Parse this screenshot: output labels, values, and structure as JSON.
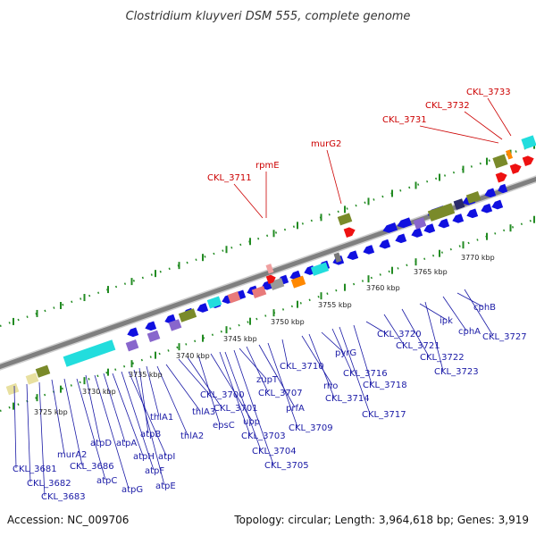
{
  "title": "Clostridium kluyveri DSM 555, complete genome",
  "footer": {
    "accession": "Accession: NC_009706",
    "stats": "Topology: circular; Length: 3,964,618 bp; Genes: 3,919"
  },
  "colors": {
    "cds": "#1010e0",
    "rrna_red": "#ee1111",
    "olive": "#7a8a2a",
    "cyan": "#22dddd",
    "purple": "#8866cc",
    "orange": "#ff8800",
    "pink": "#e87a7a",
    "gray": "#999999",
    "backbone": "#8a8a8a",
    "tick": "#228b22",
    "label_blue": "#1a1aa6",
    "label_red": "#cc0000"
  },
  "kbp_ticks": [
    {
      "text": "3725 kbp"
    },
    {
      "text": "3730 kbp"
    },
    {
      "text": "3735 kbp"
    },
    {
      "text": "3740 kbp"
    },
    {
      "text": "3745 kbp"
    },
    {
      "text": "3750 kbp"
    },
    {
      "text": "3755 kbp"
    },
    {
      "text": "3760 kbp"
    },
    {
      "text": "3765 kbp"
    },
    {
      "text": "3770 kbp"
    }
  ],
  "labels_blue": [
    "CKL_3681",
    "CKL_3682",
    "CKL_3683",
    "murA2",
    "CKL_3686",
    "atpC",
    "atpD",
    "atpG",
    "atpA",
    "atpH",
    "atpF",
    "atpI",
    "atpE",
    "atpB",
    "thlA1",
    "thlA2",
    "thlA3",
    "CKL_3700",
    "CKL_3701",
    "epsC",
    "upp",
    "CKL_3703",
    "CKL_3704",
    "CKL_3705",
    "zupT",
    "CKL_3707",
    "prfA",
    "CKL_3709",
    "CKL_3710",
    "rho",
    "CKL_3714",
    "pyrG",
    "CKL_3716",
    "CKL_3717",
    "CKL_3718",
    "CKL_3720",
    "CKL_3721",
    "CKL_3722",
    "ipk",
    "CKL_3723",
    "cphA",
    "cphB",
    "CKL_3727"
  ],
  "labels_red": [
    "CKL_3711",
    "rpmE",
    "murG2",
    "CKL_3731",
    "CKL_3732",
    "CKL_3733"
  ]
}
